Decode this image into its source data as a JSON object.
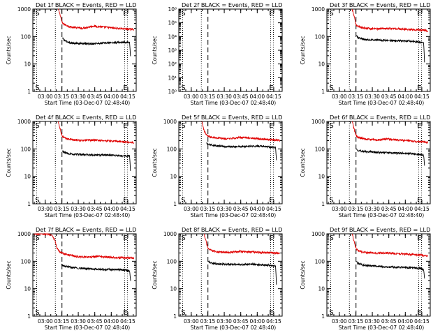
{
  "figure": {
    "x_axis_title": "Start Time (03-Dec-07 02:48:40)",
    "y_axis_title": "Counts/sec"
  },
  "colors": {
    "events": "#000000",
    "lld": "#e00000",
    "axis": "#000000",
    "background": "#ffffff"
  },
  "chart_data": [
    {
      "panel": "Det 1f",
      "type": "line",
      "title": "Det 1f BLACK = Events, RED = LLD",
      "xlabel": "Start Time (03-Dec-07 02:48:40)",
      "ylabel": "Counts/sec",
      "yscale": "log",
      "ylim": [
        1,
        1000
      ],
      "yticks": [
        1,
        10,
        100,
        1000
      ],
      "ytick_labels": [
        "1",
        "10",
        "100",
        "1000"
      ],
      "xlim_minutes": [
        0,
        94
      ],
      "xtick_minutes": [
        11.33,
        26.33,
        41.33,
        56.33,
        71.33,
        86.33
      ],
      "xtick_labels": [
        "03:00",
        "03:15",
        "03:30",
        "03:45",
        "04:00",
        "04:15"
      ],
      "markers": [
        {
          "label": "S",
          "minute": 3.5
        },
        {
          "label": "",
          "minute": 20.5
        },
        {
          "label": "E",
          "minute": 83.5
        },
        {
          "label": "",
          "minute": 86.0
        }
      ],
      "dashed_line_minute": 26.5,
      "series": [
        {
          "name": "LLD",
          "color": "red",
          "x_minutes": [
            23,
            24,
            25,
            26,
            27,
            30,
            35,
            45,
            55,
            65,
            75,
            88,
            92
          ],
          "values": [
            1000,
            800,
            600,
            400,
            300,
            260,
            220,
            200,
            240,
            220,
            200,
            185,
            180
          ]
        },
        {
          "name": "Events",
          "color": "black",
          "x_minutes": [
            27,
            28,
            31,
            35,
            45,
            55,
            65,
            75,
            85,
            88,
            89
          ],
          "values": [
            90,
            75,
            65,
            58,
            55,
            55,
            58,
            60,
            62,
            60,
            15
          ]
        }
      ]
    },
    {
      "panel": "Det 2f",
      "type": "line",
      "title": "Det 2f BLACK = Events, RED = LLD",
      "xlabel": "Start Time (03-Dec-07 02:48:40)",
      "ylabel": "Counts/sec",
      "yscale": "log",
      "ylim": [
        1,
        1000000
      ],
      "yticks": [
        1,
        10,
        100,
        1000,
        10000,
        100000,
        1000000
      ],
      "ytick_labels": [
        "10⁰",
        "10¹",
        "10²",
        "10³",
        "10⁴",
        "10⁵",
        "10⁶"
      ],
      "xlim_minutes": [
        0,
        94
      ],
      "xtick_minutes": [
        11.33,
        26.33,
        41.33,
        56.33,
        71.33,
        86.33
      ],
      "xtick_labels": [
        "03:00",
        "03:15",
        "03:30",
        "03:45",
        "04:00",
        "04:15"
      ],
      "markers": [
        {
          "label": "S",
          "minute": 3.5
        },
        {
          "label": "",
          "minute": 20.5
        },
        {
          "label": "E",
          "minute": 83.5
        },
        {
          "label": "",
          "minute": 86.0
        }
      ],
      "dashed_line_minute": 26.5,
      "series": []
    },
    {
      "panel": "Det 3f",
      "type": "line",
      "title": "Det 3f BLACK = Events, RED = LLD",
      "xlabel": "Start Time (03-Dec-07 02:48:40)",
      "ylabel": "Counts/sec",
      "yscale": "log",
      "ylim": [
        1,
        1000
      ],
      "yticks": [
        1,
        10,
        100,
        1000
      ],
      "ytick_labels": [
        "1",
        "10",
        "100",
        "1000"
      ],
      "xlim_minutes": [
        0,
        94
      ],
      "xtick_minutes": [
        11.33,
        26.33,
        41.33,
        56.33,
        71.33,
        86.33
      ],
      "xtick_labels": [
        "03:00",
        "03:15",
        "03:30",
        "03:45",
        "04:00",
        "04:15"
      ],
      "markers": [
        {
          "label": "S",
          "minute": 3.5
        },
        {
          "label": "",
          "minute": 20.5
        },
        {
          "label": "E",
          "minute": 83.5
        },
        {
          "label": "",
          "minute": 86.0
        }
      ],
      "dashed_line_minute": 26.5,
      "series": [
        {
          "name": "LLD",
          "color": "red",
          "x_minutes": [
            23,
            24,
            25,
            26,
            27,
            30,
            35,
            45,
            55,
            65,
            75,
            88,
            92
          ],
          "values": [
            1000,
            700,
            500,
            330,
            260,
            220,
            200,
            190,
            200,
            190,
            180,
            170,
            160
          ]
        },
        {
          "name": "Events",
          "color": "black",
          "x_minutes": [
            27,
            28,
            31,
            35,
            45,
            55,
            65,
            75,
            85,
            88,
            89
          ],
          "values": [
            110,
            95,
            85,
            78,
            75,
            72,
            70,
            68,
            62,
            60,
            8
          ]
        }
      ]
    },
    {
      "panel": "Det 4f",
      "type": "line",
      "title": "Det 4f BLACK = Events, RED = LLD",
      "xlabel": "Start Time (03-Dec-07 02:48:40)",
      "ylabel": "Counts/sec",
      "yscale": "log",
      "ylim": [
        1,
        1000
      ],
      "yticks": [
        1,
        10,
        100,
        1000
      ],
      "ytick_labels": [
        "1",
        "10",
        "100",
        "1000"
      ],
      "xlim_minutes": [
        0,
        94
      ],
      "xtick_minutes": [
        11.33,
        26.33,
        41.33,
        56.33,
        71.33,
        86.33
      ],
      "xtick_labels": [
        "03:00",
        "03:15",
        "03:30",
        "03:45",
        "04:00",
        "04:15"
      ],
      "markers": [
        {
          "label": "S",
          "minute": 3.5
        },
        {
          "label": "",
          "minute": 20.5
        },
        {
          "label": "E",
          "minute": 83.5
        },
        {
          "label": "",
          "minute": 86.0
        }
      ],
      "dashed_line_minute": 26.5,
      "series": [
        {
          "name": "LLD",
          "color": "red",
          "x_minutes": [
            23,
            24,
            25,
            26,
            27,
            30,
            35,
            45,
            55,
            65,
            75,
            88,
            92
          ],
          "values": [
            1000,
            700,
            500,
            350,
            280,
            240,
            220,
            200,
            210,
            200,
            190,
            175,
            170
          ]
        },
        {
          "name": "Events",
          "color": "black",
          "x_minutes": [
            27,
            28,
            31,
            35,
            45,
            55,
            65,
            75,
            85,
            88,
            89
          ],
          "values": [
            85,
            75,
            70,
            65,
            62,
            60,
            60,
            58,
            55,
            55,
            12
          ]
        }
      ]
    },
    {
      "panel": "Det 5f",
      "type": "line",
      "title": "Det 5f BLACK = Events, RED = LLD",
      "xlabel": "Start Time (03-Dec-07 02:48:40)",
      "ylabel": "Counts/sec",
      "yscale": "log",
      "ylim": [
        1,
        1000
      ],
      "yticks": [
        1,
        10,
        100,
        1000
      ],
      "ytick_labels": [
        "1",
        "10",
        "100",
        "1000"
      ],
      "xlim_minutes": [
        0,
        94
      ],
      "xtick_minutes": [
        11.33,
        26.33,
        41.33,
        56.33,
        71.33,
        86.33
      ],
      "xtick_labels": [
        "03:00",
        "03:15",
        "03:30",
        "03:45",
        "04:00",
        "04:15"
      ],
      "markers": [
        {
          "label": "S",
          "minute": 3.5
        },
        {
          "label": "",
          "minute": 20.5
        },
        {
          "label": "E",
          "minute": 83.5
        },
        {
          "label": "",
          "minute": 86.0
        }
      ],
      "dashed_line_minute": 26.5,
      "series": [
        {
          "name": "LLD",
          "color": "red",
          "x_minutes": [
            21,
            22,
            23,
            25,
            27,
            30,
            35,
            45,
            55,
            65,
            75,
            88,
            92
          ],
          "values": [
            1000,
            700,
            450,
            330,
            290,
            270,
            250,
            230,
            260,
            250,
            230,
            210,
            200
          ]
        },
        {
          "name": "Events",
          "color": "black",
          "x_minutes": [
            25,
            26,
            29,
            35,
            45,
            55,
            65,
            75,
            85,
            88,
            89
          ],
          "values": [
            160,
            150,
            140,
            130,
            120,
            120,
            125,
            125,
            115,
            110,
            30
          ]
        }
      ]
    },
    {
      "panel": "Det 6f",
      "type": "line",
      "title": "Det 6f BLACK = Events, RED = LLD",
      "xlabel": "Start Time (03-Dec-07 02:48:40)",
      "ylabel": "Counts/sec",
      "yscale": "log",
      "ylim": [
        1,
        1000
      ],
      "yticks": [
        1,
        10,
        100,
        1000
      ],
      "ytick_labels": [
        "1",
        "10",
        "100",
        "1000"
      ],
      "xlim_minutes": [
        0,
        94
      ],
      "xtick_minutes": [
        11.33,
        26.33,
        41.33,
        56.33,
        71.33,
        86.33
      ],
      "xtick_labels": [
        "03:00",
        "03:15",
        "03:30",
        "03:45",
        "04:00",
        "04:15"
      ],
      "markers": [
        {
          "label": "S",
          "minute": 3.5
        },
        {
          "label": "",
          "minute": 20.5
        },
        {
          "label": "E",
          "minute": 83.5
        },
        {
          "label": "",
          "minute": 86.0
        }
      ],
      "dashed_line_minute": 26.5,
      "series": [
        {
          "name": "LLD",
          "color": "red",
          "x_minutes": [
            23,
            24,
            25,
            26,
            27,
            30,
            35,
            45,
            55,
            65,
            75,
            88,
            92
          ],
          "values": [
            1000,
            700,
            500,
            350,
            290,
            250,
            230,
            210,
            230,
            210,
            195,
            180,
            170
          ]
        },
        {
          "name": "Events",
          "color": "black",
          "x_minutes": [
            27,
            28,
            31,
            35,
            45,
            55,
            65,
            75,
            85,
            88,
            89
          ],
          "values": [
            100,
            90,
            85,
            80,
            75,
            72,
            70,
            68,
            62,
            60,
            20
          ]
        }
      ]
    },
    {
      "panel": "Det 7f",
      "type": "line",
      "title": "Det 7f BLACK = Events, RED = LLD",
      "xlabel": "Start Time (03-Dec-07 02:48:40)",
      "ylabel": "Counts/sec",
      "yscale": "log",
      "ylim": [
        1,
        1000
      ],
      "yticks": [
        1,
        10,
        100,
        1000
      ],
      "ytick_labels": [
        "1",
        "10",
        "100",
        "1000"
      ],
      "xlim_minutes": [
        0,
        94
      ],
      "xtick_minutes": [
        11.33,
        26.33,
        41.33,
        56.33,
        71.33,
        86.33
      ],
      "xtick_labels": [
        "03:00",
        "03:15",
        "03:30",
        "03:45",
        "04:00",
        "04:15"
      ],
      "markers": [
        {
          "label": "S",
          "minute": 3.5
        },
        {
          "label": "",
          "minute": 20.5
        },
        {
          "label": "E",
          "minute": 83.5
        },
        {
          "label": "",
          "minute": 86.0
        }
      ],
      "dashed_line_minute": 26.5,
      "series": [
        {
          "name": "LLD",
          "color": "red",
          "x_minutes": [
            1,
            8,
            14,
            17,
            18,
            20,
            21,
            22,
            25,
            30,
            40,
            50,
            60,
            70,
            80,
            92
          ],
          "values": [
            1000,
            1000,
            1000,
            900,
            800,
            600,
            420,
            290,
            210,
            180,
            150,
            140,
            150,
            140,
            135,
            130
          ]
        },
        {
          "name": "Events",
          "color": "black",
          "x_minutes": [
            26,
            27,
            30,
            35,
            45,
            55,
            65,
            75,
            85,
            88,
            89
          ],
          "values": [
            75,
            70,
            65,
            60,
            55,
            52,
            50,
            50,
            48,
            45,
            18
          ]
        }
      ]
    },
    {
      "panel": "Det 8f",
      "type": "line",
      "title": "Det 8f BLACK = Events, RED = LLD",
      "xlabel": "Start Time (03-Dec-07 02:48:40)",
      "ylabel": "Counts/sec",
      "yscale": "log",
      "ylim": [
        1,
        1000
      ],
      "yticks": [
        1,
        10,
        100,
        1000
      ],
      "ytick_labels": [
        "1",
        "10",
        "100",
        "1000"
      ],
      "xlim_minutes": [
        0,
        94
      ],
      "xtick_minutes": [
        11.33,
        26.33,
        41.33,
        56.33,
        71.33,
        86.33
      ],
      "xtick_labels": [
        "03:00",
        "03:15",
        "03:30",
        "03:45",
        "04:00",
        "04:15"
      ],
      "markers": [
        {
          "label": "S",
          "minute": 3.5
        },
        {
          "label": "",
          "minute": 20.5
        },
        {
          "label": "E",
          "minute": 83.5
        },
        {
          "label": "",
          "minute": 86.0
        }
      ],
      "dashed_line_minute": 26.5,
      "series": [
        {
          "name": "LLD",
          "color": "red",
          "x_minutes": [
            23,
            24,
            25,
            26,
            27,
            30,
            35,
            45,
            55,
            65,
            75,
            88,
            92
          ],
          "values": [
            1000,
            700,
            500,
            350,
            280,
            240,
            220,
            210,
            230,
            220,
            210,
            200,
            190
          ]
        },
        {
          "name": "Events",
          "color": "black",
          "x_minutes": [
            27,
            28,
            31,
            35,
            45,
            55,
            65,
            75,
            85,
            88,
            89
          ],
          "values": [
            100,
            90,
            85,
            80,
            78,
            75,
            78,
            75,
            70,
            68,
            10
          ]
        }
      ]
    },
    {
      "panel": "Det 9f",
      "type": "line",
      "title": "Det 9f BLACK = Events, RED = LLD",
      "xlabel": "Start Time (03-Dec-07 02:48:40)",
      "ylabel": "Counts/sec",
      "yscale": "log",
      "ylim": [
        1,
        1000
      ],
      "yticks": [
        1,
        10,
        100,
        1000
      ],
      "ytick_labels": [
        "1",
        "10",
        "100",
        "1000"
      ],
      "xlim_minutes": [
        0,
        94
      ],
      "xtick_minutes": [
        11.33,
        26.33,
        41.33,
        56.33,
        71.33,
        86.33
      ],
      "xtick_labels": [
        "03:00",
        "03:15",
        "03:30",
        "03:45",
        "04:00",
        "04:15"
      ],
      "markers": [
        {
          "label": "S",
          "minute": 3.5
        },
        {
          "label": "",
          "minute": 20.5
        },
        {
          "label": "E",
          "minute": 83.5
        },
        {
          "label": "",
          "minute": 86.0
        }
      ],
      "dashed_line_minute": 26.5,
      "series": [
        {
          "name": "LLD",
          "color": "red",
          "x_minutes": [
            23,
            24,
            25,
            26,
            27,
            30,
            35,
            45,
            55,
            65,
            75,
            88,
            92
          ],
          "values": [
            1000,
            700,
            500,
            340,
            270,
            230,
            210,
            195,
            200,
            190,
            180,
            165,
            155
          ]
        },
        {
          "name": "Events",
          "color": "black",
          "x_minutes": [
            27,
            28,
            31,
            35,
            45,
            55,
            65,
            75,
            85,
            88,
            89
          ],
          "values": [
            95,
            85,
            78,
            70,
            65,
            62,
            60,
            58,
            55,
            50,
            20
          ]
        }
      ]
    }
  ]
}
